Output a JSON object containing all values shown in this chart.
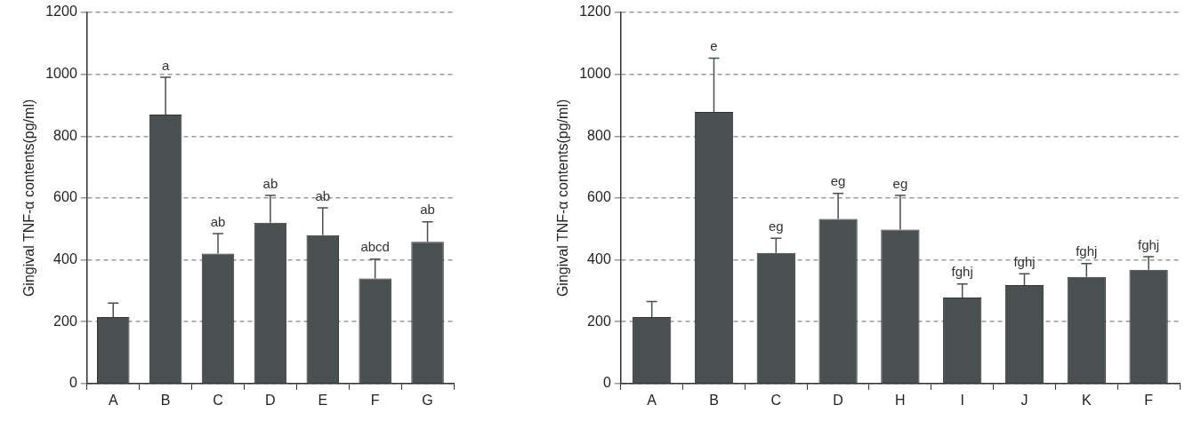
{
  "chart_data": [
    {
      "type": "bar",
      "ylabel": "Gingival TNF-α contents(pg/ml)",
      "categories": [
        "A",
        "B",
        "C",
        "D",
        "E",
        "F",
        "G"
      ],
      "values": [
        215,
        870,
        420,
        520,
        480,
        340,
        458
      ],
      "color": "#4a4f4f",
      "errors": [
        [
          215,
          260
        ],
        [
          870,
          990
        ],
        [
          420,
          485
        ],
        [
          520,
          608
        ],
        [
          480,
          568
        ],
        [
          340,
          402
        ],
        [
          458,
          523
        ]
      ],
      "ylim": [
        0,
        1200
      ],
      "yticks": [
        0,
        200,
        400,
        600,
        800,
        1000,
        1200
      ],
      "grid": "y",
      "annotations": [
        {
          "text": "a",
          "x": "B",
          "y": 990
        },
        {
          "text": "ab",
          "x": "C",
          "y": 485
        },
        {
          "text": "ab",
          "x": "D",
          "y": 608
        },
        {
          "text": "ab",
          "x": "E",
          "y": 568
        },
        {
          "text": "abcd",
          "x": "F",
          "y": 402
        },
        {
          "text": "ab",
          "x": "G",
          "y": 523
        }
      ]
    },
    {
      "type": "bar",
      "ylabel": "Gingival TNF-α contents(pg/ml)",
      "categories": [
        "A",
        "B",
        "C",
        "D",
        "H",
        "I",
        "J",
        "K",
        "F"
      ],
      "values": [
        215,
        878,
        422,
        532,
        498,
        278,
        318,
        345,
        368
      ],
      "color": "#4a4f4f",
      "errors": [
        [
          215,
          265
        ],
        [
          878,
          1052
        ],
        [
          422,
          470
        ],
        [
          532,
          615
        ],
        [
          498,
          608
        ],
        [
          278,
          322
        ],
        [
          318,
          355
        ],
        [
          345,
          388
        ],
        [
          368,
          410
        ]
      ],
      "ylim": [
        0,
        1200
      ],
      "yticks": [
        0,
        200,
        400,
        600,
        800,
        1000,
        1200
      ],
      "grid": "y",
      "annotations": [
        {
          "text": "e",
          "x": "B",
          "y": 1052
        },
        {
          "text": "eg",
          "x": "C",
          "y": 470
        },
        {
          "text": "eg",
          "x": "D",
          "y": 615
        },
        {
          "text": "eg",
          "x": "H",
          "y": 608
        },
        {
          "text": "fghj",
          "x": "I",
          "y": 322
        },
        {
          "text": "fghj",
          "x": "J",
          "y": 355
        },
        {
          "text": "fghj",
          "x": "K",
          "y": 388
        },
        {
          "text": "fghj",
          "x": "F",
          "y": 410
        }
      ]
    }
  ]
}
